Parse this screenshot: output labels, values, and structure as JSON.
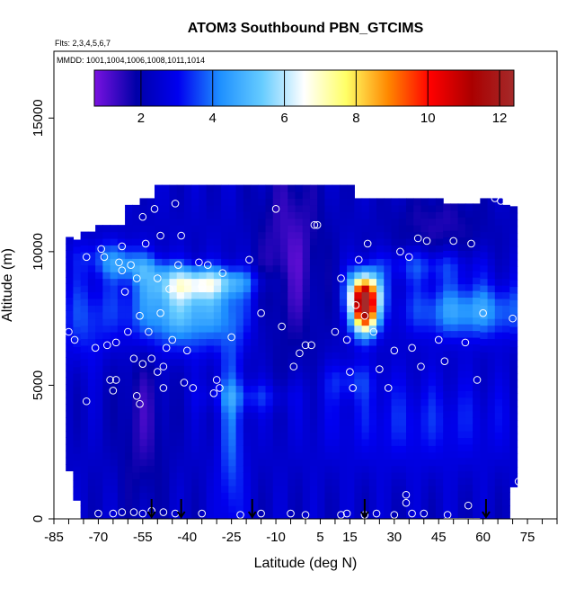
{
  "chart_data": {
    "type": "heatmap",
    "title": "ATOM3 Southbound PBN_GTCIMS",
    "subtitle_lines": [
      "Flts: 2,3,4,5,6,7",
      "MMDD: 1001,1004,1006,1008,1011,1014"
    ],
    "xlabel": "Latitude (deg N)",
    "ylabel": "Altitude (m)",
    "xlim": [
      -85,
      85
    ],
    "ylim": [
      0,
      17500
    ],
    "x_ticks": [
      -85,
      -70,
      -55,
      -40,
      -25,
      -10,
      5,
      15,
      30,
      45,
      60,
      75
    ],
    "x_minor_step": 5,
    "y_ticks": [
      0,
      5000,
      10000,
      15000
    ],
    "colorbar": {
      "min": 0.7,
      "max": 12.4,
      "ticks": [
        2,
        4,
        6,
        8,
        10,
        12
      ],
      "colors": [
        "#7a12e0",
        "#0000a8",
        "#0000f0",
        "#1e90ff",
        "#66ccff",
        "#ffffff",
        "#ffff66",
        "#ff8800",
        "#ff0000",
        "#aa0000",
        "#a52a2a"
      ]
    },
    "flight_markers_x": [
      -52,
      -42,
      -18,
      20,
      61
    ],
    "sample_points": [
      [
        -80,
        7000
      ],
      [
        -78,
        6700
      ],
      [
        -74,
        9800
      ],
      [
        -74,
        4400
      ],
      [
        -71,
        6400
      ],
      [
        -69,
        10100
      ],
      [
        -68,
        9800
      ],
      [
        -67,
        6500
      ],
      [
        -66,
        5200
      ],
      [
        -65,
        4800
      ],
      [
        -64,
        6600
      ],
      [
        -64,
        5200
      ],
      [
        -63,
        9600
      ],
      [
        -62,
        9300
      ],
      [
        -62,
        10200
      ],
      [
        -61,
        8500
      ],
      [
        -60,
        7000
      ],
      [
        -59,
        9500
      ],
      [
        -58,
        6000
      ],
      [
        -57,
        9000
      ],
      [
        -57,
        4600
      ],
      [
        -56,
        7600
      ],
      [
        -56,
        4300
      ],
      [
        -55,
        5800
      ],
      [
        -55,
        11300
      ],
      [
        -54,
        10300
      ],
      [
        -53,
        7000
      ],
      [
        -52,
        6000
      ],
      [
        -51,
        11600
      ],
      [
        -50,
        9000
      ],
      [
        -50,
        5500
      ],
      [
        -49,
        7700
      ],
      [
        -49,
        10600
      ],
      [
        -48,
        5700
      ],
      [
        -48,
        4900
      ],
      [
        -47,
        6400
      ],
      [
        -46,
        8600
      ],
      [
        -45,
        6700
      ],
      [
        -44,
        11800
      ],
      [
        -43,
        9500
      ],
      [
        -42,
        10600
      ],
      [
        -41,
        5100
      ],
      [
        -40,
        6300
      ],
      [
        -38,
        4900
      ],
      [
        -36,
        9600
      ],
      [
        -35,
        8700
      ],
      [
        -33,
        9500
      ],
      [
        -31,
        4700
      ],
      [
        -30,
        5200
      ],
      [
        -29,
        4900
      ],
      [
        -28,
        9200
      ],
      [
        -25,
        6800
      ],
      [
        -19,
        9700
      ],
      [
        -15,
        7700
      ],
      [
        -10,
        11600
      ],
      [
        -8,
        7200
      ],
      [
        -4,
        5700
      ],
      [
        -2,
        6200
      ],
      [
        0,
        6500
      ],
      [
        2,
        6500
      ],
      [
        3,
        11000
      ],
      [
        4,
        11000
      ],
      [
        10,
        7000
      ],
      [
        12,
        9000
      ],
      [
        14,
        6700
      ],
      [
        15,
        5500
      ],
      [
        16,
        4900
      ],
      [
        17,
        8000
      ],
      [
        18,
        9700
      ],
      [
        20,
        7600
      ],
      [
        21,
        10300
      ],
      [
        23,
        7000
      ],
      [
        25,
        5600
      ],
      [
        28,
        4900
      ],
      [
        30,
        6300
      ],
      [
        32,
        10000
      ],
      [
        35,
        9800
      ],
      [
        36,
        6400
      ],
      [
        38,
        10500
      ],
      [
        39,
        5700
      ],
      [
        41,
        10400
      ],
      [
        45,
        6700
      ],
      [
        47,
        5900
      ],
      [
        50,
        10400
      ],
      [
        54,
        6600
      ],
      [
        56,
        10300
      ],
      [
        58,
        5200
      ],
      [
        60,
        7700
      ],
      [
        64,
        12000
      ],
      [
        66,
        11900
      ],
      [
        70,
        7500
      ],
      [
        72,
        1400
      ],
      [
        34,
        900
      ],
      [
        34,
        600
      ],
      [
        55,
        500
      ],
      [
        -70,
        200
      ],
      [
        -65,
        200
      ],
      [
        -62,
        250
      ],
      [
        -58,
        250
      ],
      [
        -55,
        200
      ],
      [
        -52,
        300
      ],
      [
        -48,
        250
      ],
      [
        -44,
        200
      ],
      [
        -35,
        200
      ],
      [
        -22,
        150
      ],
      [
        -15,
        200
      ],
      [
        -5,
        200
      ],
      [
        0,
        150
      ],
      [
        12,
        150
      ],
      [
        14,
        200
      ],
      [
        20,
        150
      ],
      [
        24,
        200
      ],
      [
        30,
        150
      ],
      [
        36,
        200
      ],
      [
        40,
        200
      ],
      [
        48,
        150
      ]
    ]
  }
}
